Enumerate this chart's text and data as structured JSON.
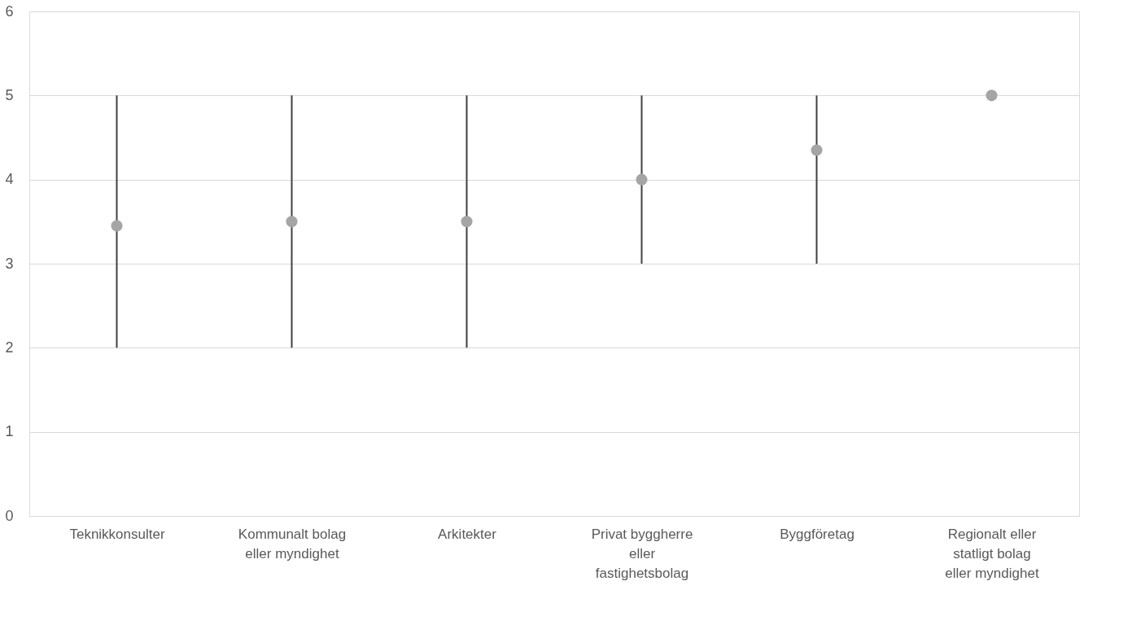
{
  "chart_data": {
    "type": "scatter",
    "categories": [
      "Teknikkonsulter",
      "Kommunalt bolag eller myndighet",
      "Arkitekter",
      "Privat byggherre eller fastighetsbolag",
      "Byggföretag",
      "Regionalt eller statligt bolag eller myndighet"
    ],
    "series": [
      {
        "color": "#a5a5a5",
        "values": [
          3.45,
          3.5,
          3.5,
          4.0,
          4.35,
          5.0
        ],
        "errors": [
          [
            2,
            5
          ],
          [
            2,
            5
          ],
          [
            2,
            5
          ],
          [
            3,
            5
          ],
          [
            3,
            5
          ],
          null
        ]
      }
    ],
    "ylim": [
      0,
      6
    ],
    "yticks": [
      0,
      1,
      2,
      3,
      4,
      5,
      6
    ],
    "grid": "y",
    "marker": "circle"
  }
}
